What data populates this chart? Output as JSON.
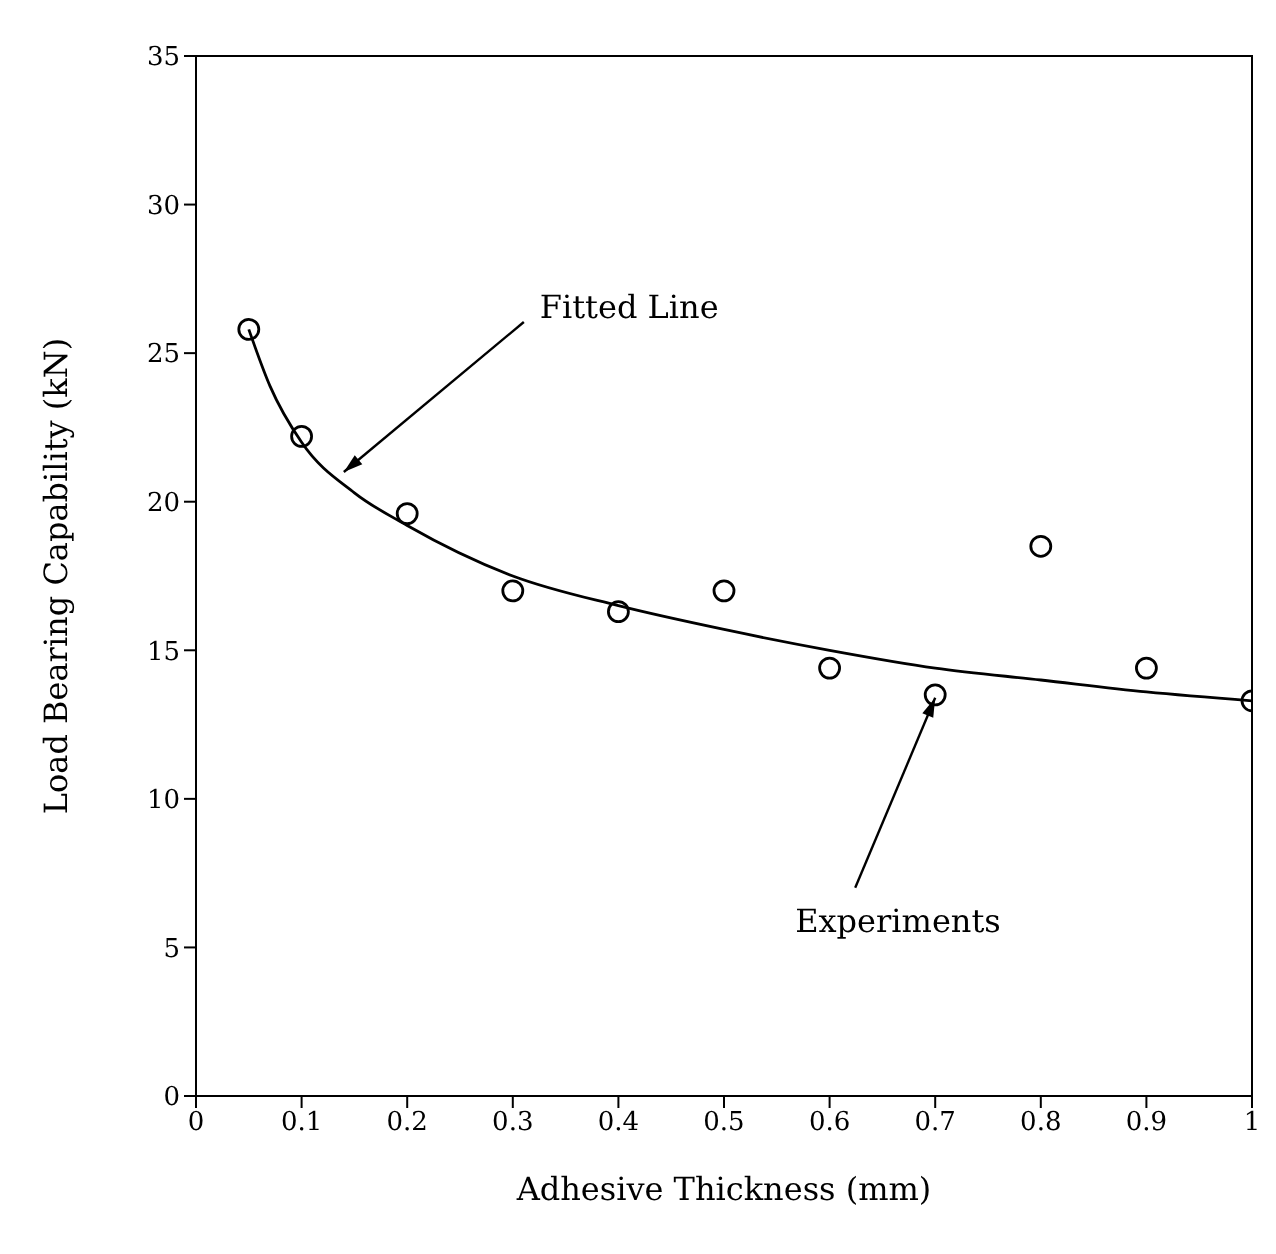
{
  "chart_data": {
    "type": "scatter",
    "xlabel": "Adhesive Thickness (mm)",
    "ylabel": "Load Bearing Capability (kN)",
    "xlim": [
      0,
      1
    ],
    "xticks": [
      0,
      0.1,
      0.2,
      0.3,
      0.4,
      0.5,
      0.6,
      0.7,
      0.8,
      0.9,
      1
    ],
    "ylim": [
      0,
      35
    ],
    "yticks": [
      0,
      5,
      10,
      15,
      20,
      25,
      30,
      35
    ],
    "grid": false,
    "legend": false,
    "series": [
      {
        "marker": "circle",
        "color": "#000000",
        "x": [
          0.05,
          0.1,
          0.2,
          0.3,
          0.4,
          0.5,
          0.6,
          0.7,
          0.8,
          0.9,
          1
        ],
        "values": [
          25.8,
          22.2,
          19.6,
          17.0,
          16.3,
          17.0,
          14.4,
          13.5,
          18.5,
          14.4,
          13.3
        ]
      },
      {
        "type": "line",
        "marker": "none",
        "color": "#000000",
        "x": [
          0.05,
          0.07,
          0.1,
          0.15,
          0.2,
          0.3,
          0.4,
          0.5,
          0.6,
          0.7,
          0.8,
          0.9,
          1
        ],
        "values": [
          25.8,
          23.9,
          22.0,
          20.3,
          19.2,
          17.5,
          16.5,
          15.7,
          15.0,
          14.4,
          14.0,
          13.6,
          13.3
        ]
      }
    ],
    "annotations": [
      {
        "text": "Fitted Line",
        "x": 0.14,
        "y": 21.0
      },
      {
        "text": "Experiments",
        "x": 0.7,
        "y": 13.4
      }
    ]
  }
}
